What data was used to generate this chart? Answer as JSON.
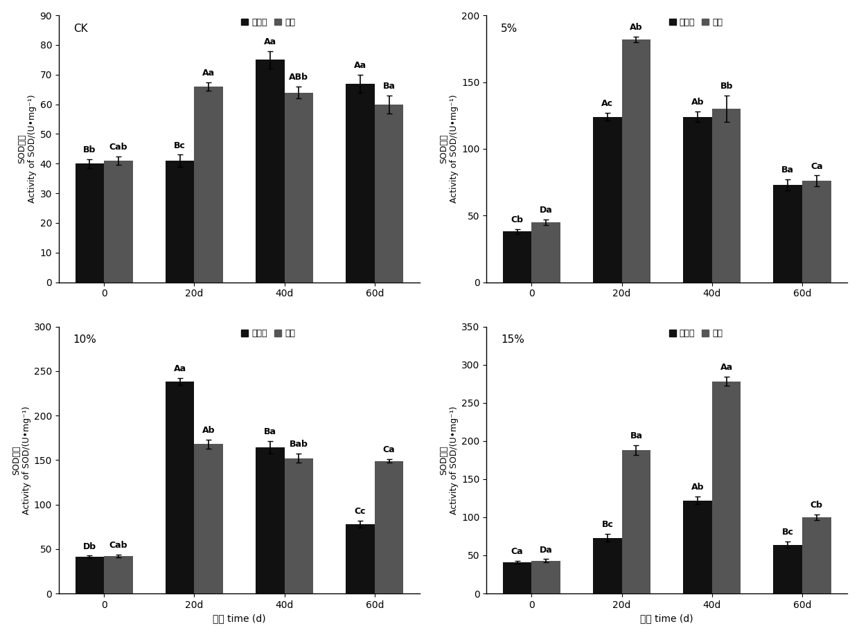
{
  "subplots": [
    {
      "label": "CK",
      "ylim": [
        0,
        90
      ],
      "yticks": [
        0,
        10,
        20,
        30,
        40,
        50,
        60,
        70,
        80,
        90
      ],
      "xlabel_bottom": false,
      "groups": [
        "0",
        "20d",
        "40d",
        "60d"
      ],
      "bar1": [
        40,
        41,
        75,
        67
      ],
      "bar2": [
        41,
        66,
        64,
        60
      ],
      "err1": [
        1.5,
        2,
        3,
        3
      ],
      "err2": [
        1.5,
        1.5,
        2,
        3
      ],
      "labels1": [
        "Bb",
        "Bc",
        "Aa",
        "Aa"
      ],
      "labels2": [
        "Cab",
        "Aa",
        "ABb",
        "Ba"
      ]
    },
    {
      "label": "5%",
      "ylim": [
        0,
        200
      ],
      "yticks": [
        0,
        50,
        100,
        150,
        200
      ],
      "xlabel_bottom": false,
      "groups": [
        "0",
        "20d",
        "40d",
        "60d"
      ],
      "bar1": [
        38,
        124,
        124,
        73
      ],
      "bar2": [
        45,
        182,
        130,
        76
      ],
      "err1": [
        2,
        3,
        4,
        4
      ],
      "err2": [
        2,
        2,
        10,
        4
      ],
      "labels1": [
        "Cb",
        "Ac",
        "Ab",
        "Ba"
      ],
      "labels2": [
        "Da",
        "Ab",
        "Bb",
        "Ca"
      ]
    },
    {
      "label": "10%",
      "ylim": [
        0,
        300
      ],
      "yticks": [
        0,
        50,
        100,
        150,
        200,
        250,
        300
      ],
      "xlabel_bottom": true,
      "xlabel": "时间 time (d)",
      "groups": [
        "0",
        "20d",
        "40d",
        "60d"
      ],
      "bar1": [
        41,
        238,
        164,
        78
      ],
      "bar2": [
        42,
        168,
        152,
        149
      ],
      "err1": [
        1.5,
        4,
        7,
        4
      ],
      "err2": [
        1.5,
        5,
        5,
        2
      ],
      "labels1": [
        "Db",
        "Aa",
        "Ba",
        "Cc"
      ],
      "labels2": [
        "Cab",
        "Ab",
        "Bab",
        "Ca"
      ]
    },
    {
      "label": "15%",
      "ylim": [
        0,
        350
      ],
      "yticks": [
        0,
        50,
        100,
        150,
        200,
        250,
        300,
        350
      ],
      "xlabel_bottom": true,
      "xlabel": "时间 time (d)",
      "groups": [
        "0",
        "20d",
        "40d",
        "60d"
      ],
      "bar1": [
        41,
        73,
        122,
        64
      ],
      "bar2": [
        43,
        188,
        278,
        100
      ],
      "err1": [
        1.5,
        5,
        5,
        4
      ],
      "err2": [
        2,
        6,
        6,
        4
      ],
      "labels1": [
        "Ca",
        "Bc",
        "Ab",
        "Bc"
      ],
      "labels2": [
        "Da",
        "Ba",
        "Aa",
        "Cb"
      ]
    }
  ],
  "bar_color1": "#111111",
  "bar_color2": "#555555",
  "bar_width": 0.32,
  "legend_labels": [
    "未接菌",
    "接菌"
  ],
  "ylabel_cn": "SOD活性",
  "ylabel_en": "Activity of SOD/(U•mg⁻¹)",
  "font_size": 10,
  "annot_font_size": 9,
  "tick_font_size": 10
}
